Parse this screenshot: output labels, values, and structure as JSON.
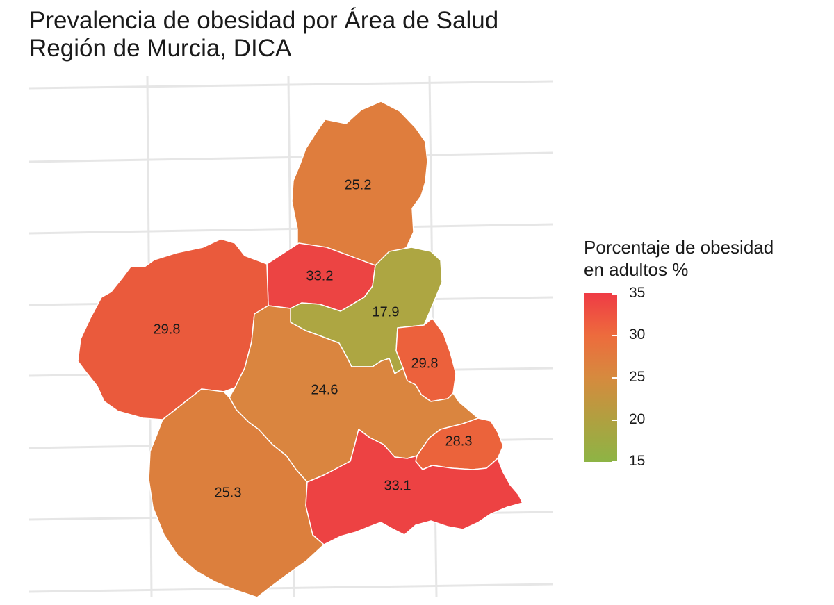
{
  "title": "Prevalencia de obesidad por Área de Salud",
  "subtitle": "Región de Murcia, DICA",
  "legend": {
    "title_line1": "Porcentaje de obesidad",
    "title_line2": "en adultos %",
    "ticks": [
      "35",
      "30",
      "25",
      "20",
      "15"
    ],
    "colors": {
      "low": "#8db445",
      "mid": "#d68a3e",
      "high": "#ef3b45"
    }
  },
  "areas": [
    {
      "label": "25.2",
      "color": "#df7d3d"
    },
    {
      "label": "33.2",
      "color": "#ec4443"
    },
    {
      "label": "17.9",
      "color": "#ada642"
    },
    {
      "label": "29.8",
      "color": "#ea5a3c"
    },
    {
      "label": "29.8",
      "color": "#ec613c"
    },
    {
      "label": "24.6",
      "color": "#da853f"
    },
    {
      "label": "25.3",
      "color": "#dc7f3d"
    },
    {
      "label": "28.3",
      "color": "#eb633b"
    },
    {
      "label": "33.1",
      "color": "#ed4243"
    }
  ]
}
